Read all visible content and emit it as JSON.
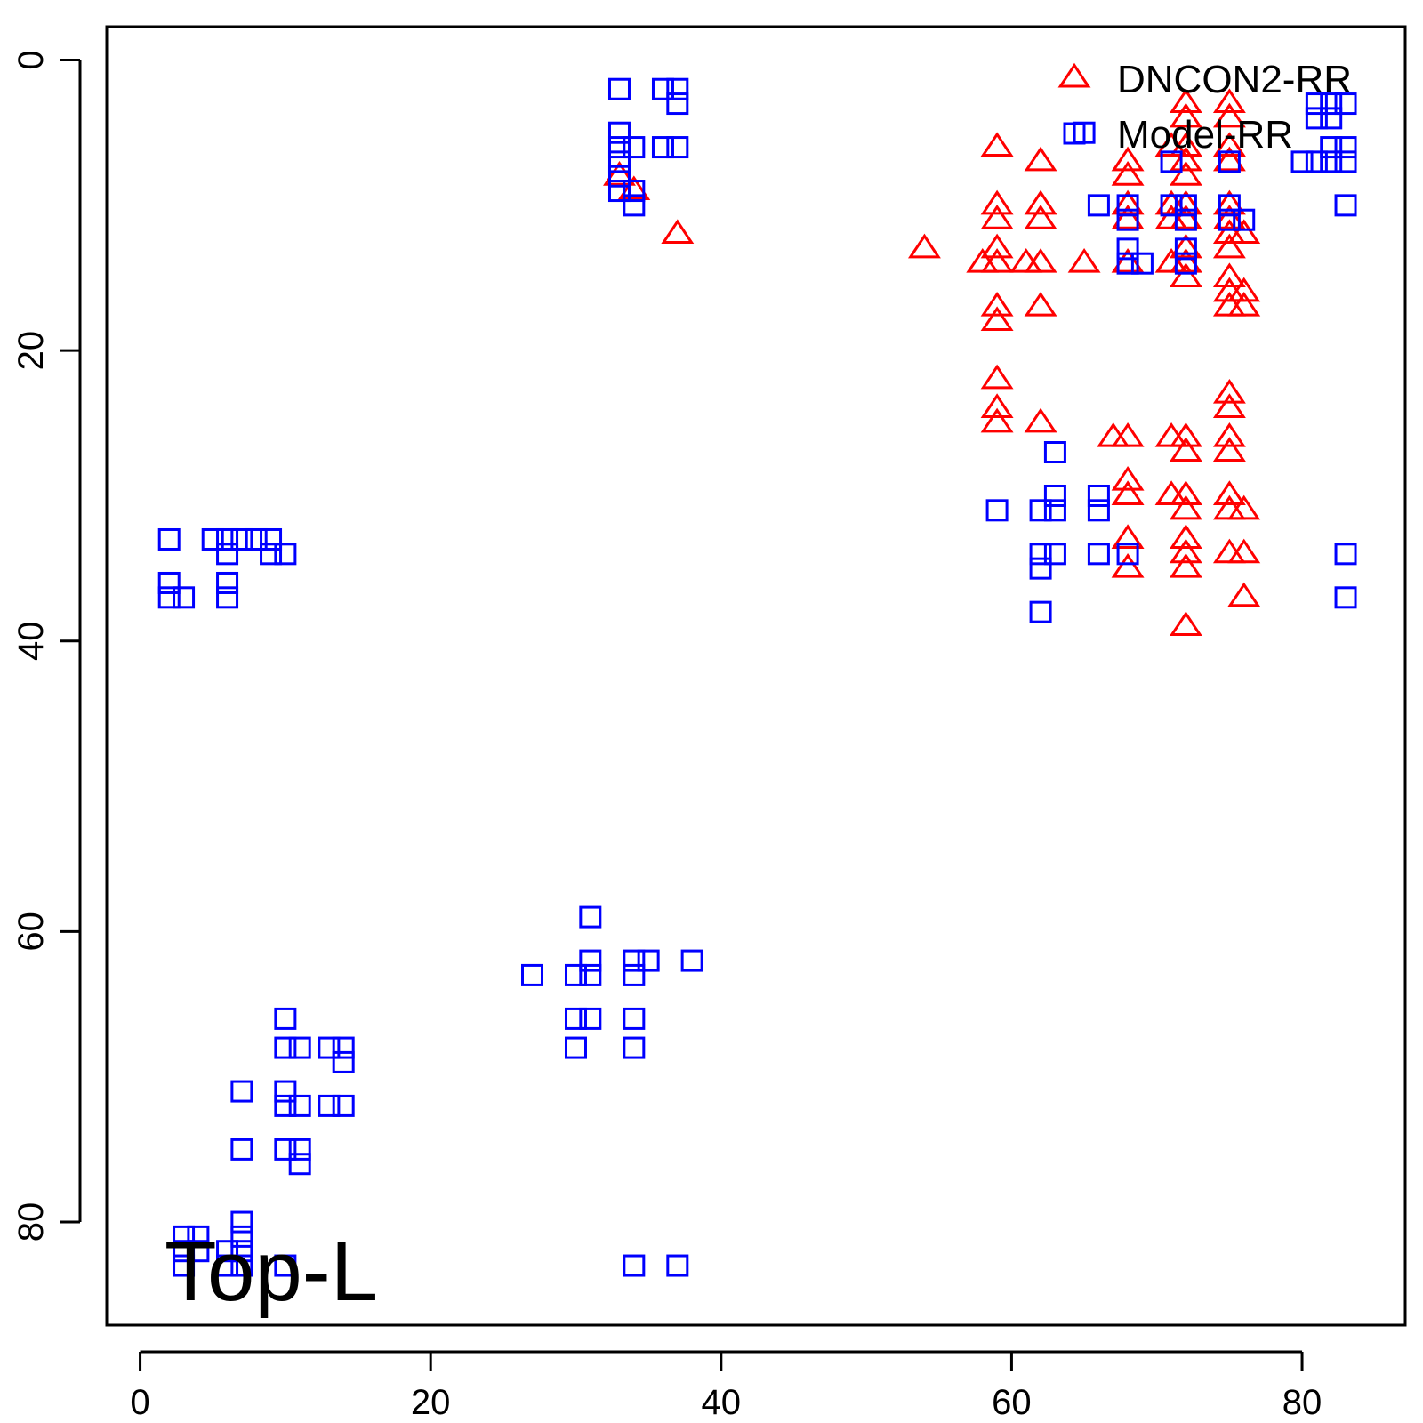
{
  "chart_data": {
    "type": "scatter",
    "title": "",
    "xlabel": "",
    "ylabel": "",
    "xlim": [
      -2.3,
      87.1
    ],
    "ylim": [
      -2.3,
      87.1
    ],
    "y_reversed": true,
    "x_ticks": [
      0,
      20,
      40,
      60,
      80
    ],
    "y_ticks": [
      0,
      20,
      40,
      60,
      80
    ],
    "grid": false,
    "legend": {
      "position": "top-right"
    },
    "annotation": "Top-L",
    "series": [
      {
        "name": "DNCON2-RR",
        "marker": "triangle",
        "color": "#ff0000",
        "points": [
          [
            33,
            8
          ],
          [
            34,
            9
          ],
          [
            37,
            12
          ],
          [
            54,
            13
          ],
          [
            59,
            6
          ],
          [
            59,
            10
          ],
          [
            59,
            11
          ],
          [
            59,
            13
          ],
          [
            59,
            14
          ],
          [
            59,
            17
          ],
          [
            59,
            18
          ],
          [
            59,
            22
          ],
          [
            59,
            24
          ],
          [
            59,
            25
          ],
          [
            58,
            14
          ],
          [
            61,
            14
          ],
          [
            62,
            7
          ],
          [
            62,
            10
          ],
          [
            62,
            11
          ],
          [
            62,
            14
          ],
          [
            62,
            17
          ],
          [
            62,
            25
          ],
          [
            65,
            14
          ],
          [
            67,
            26
          ],
          [
            68,
            7
          ],
          [
            68,
            8
          ],
          [
            68,
            10
          ],
          [
            68,
            11
          ],
          [
            68,
            14
          ],
          [
            68,
            26
          ],
          [
            68,
            29
          ],
          [
            68,
            30
          ],
          [
            68,
            33
          ],
          [
            68,
            35
          ],
          [
            71,
            6
          ],
          [
            71,
            10
          ],
          [
            71,
            11
          ],
          [
            71,
            14
          ],
          [
            71,
            26
          ],
          [
            71,
            30
          ],
          [
            72,
            3
          ],
          [
            72,
            4
          ],
          [
            72,
            6
          ],
          [
            72,
            7
          ],
          [
            72,
            8
          ],
          [
            72,
            10
          ],
          [
            72,
            11
          ],
          [
            72,
            13
          ],
          [
            72,
            14
          ],
          [
            72,
            15
          ],
          [
            72,
            26
          ],
          [
            72,
            27
          ],
          [
            72,
            30
          ],
          [
            72,
            31
          ],
          [
            72,
            33
          ],
          [
            72,
            34
          ],
          [
            72,
            35
          ],
          [
            72,
            39
          ],
          [
            75,
            3
          ],
          [
            75,
            4
          ],
          [
            75,
            6
          ],
          [
            75,
            7
          ],
          [
            75,
            10
          ],
          [
            75,
            11
          ],
          [
            75,
            12
          ],
          [
            75,
            13
          ],
          [
            75,
            15
          ],
          [
            75,
            16
          ],
          [
            75,
            17
          ],
          [
            75,
            23
          ],
          [
            75,
            24
          ],
          [
            75,
            26
          ],
          [
            75,
            27
          ],
          [
            75,
            30
          ],
          [
            75,
            31
          ],
          [
            75,
            34
          ],
          [
            76,
            12
          ],
          [
            76,
            16
          ],
          [
            76,
            17
          ],
          [
            76,
            31
          ],
          [
            76,
            34
          ],
          [
            76,
            37
          ]
        ]
      },
      {
        "name": "Model-RR",
        "marker": "square",
        "color": "#0000ff",
        "points": [
          [
            33,
            2
          ],
          [
            33,
            5
          ],
          [
            33,
            6
          ],
          [
            33,
            7
          ],
          [
            33,
            8
          ],
          [
            33,
            9
          ],
          [
            34,
            6
          ],
          [
            34,
            9
          ],
          [
            34,
            10
          ],
          [
            36,
            2
          ],
          [
            37,
            2
          ],
          [
            37,
            3
          ],
          [
            36,
            6
          ],
          [
            37,
            6
          ],
          [
            2,
            33
          ],
          [
            2,
            36
          ],
          [
            2,
            37
          ],
          [
            3,
            37
          ],
          [
            5,
            33
          ],
          [
            6,
            33
          ],
          [
            6,
            34
          ],
          [
            6,
            36
          ],
          [
            6,
            37
          ],
          [
            7,
            33
          ],
          [
            8,
            33
          ],
          [
            9,
            33
          ],
          [
            9,
            34
          ],
          [
            10,
            34
          ],
          [
            27,
            63
          ],
          [
            30,
            63
          ],
          [
            30,
            66
          ],
          [
            30,
            68
          ],
          [
            31,
            59
          ],
          [
            31,
            62
          ],
          [
            31,
            63
          ],
          [
            31,
            66
          ],
          [
            34,
            62
          ],
          [
            34,
            63
          ],
          [
            34,
            66
          ],
          [
            34,
            68
          ],
          [
            35,
            62
          ],
          [
            38,
            62
          ],
          [
            34,
            83
          ],
          [
            37,
            83
          ],
          [
            10,
            66
          ],
          [
            10,
            68
          ],
          [
            10,
            71
          ],
          [
            10,
            72
          ],
          [
            10,
            75
          ],
          [
            11,
            68
          ],
          [
            11,
            72
          ],
          [
            11,
            75
          ],
          [
            11,
            76
          ],
          [
            13,
            68
          ],
          [
            13,
            72
          ],
          [
            14,
            68
          ],
          [
            14,
            69
          ],
          [
            14,
            72
          ],
          [
            7,
            71
          ],
          [
            7,
            75
          ],
          [
            7,
            80
          ],
          [
            7,
            81
          ],
          [
            7,
            82
          ],
          [
            7,
            83
          ],
          [
            3,
            81
          ],
          [
            3,
            82
          ],
          [
            3,
            83
          ],
          [
            4,
            81
          ],
          [
            4,
            82
          ],
          [
            6,
            82
          ],
          [
            6,
            83
          ],
          [
            10,
            83
          ],
          [
            59,
            31
          ],
          [
            62,
            31
          ],
          [
            62,
            34
          ],
          [
            62,
            35
          ],
          [
            62,
            38
          ],
          [
            63,
            27
          ],
          [
            63,
            30
          ],
          [
            63,
            31
          ],
          [
            63,
            34
          ],
          [
            66,
            30
          ],
          [
            66,
            31
          ],
          [
            66,
            34
          ],
          [
            68,
            34
          ],
          [
            83,
            34
          ],
          [
            83,
            37
          ],
          [
            65,
            5
          ],
          [
            66,
            10
          ],
          [
            68,
            10
          ],
          [
            68,
            11
          ],
          [
            68,
            13
          ],
          [
            68,
            14
          ],
          [
            69,
            14
          ],
          [
            71,
            7
          ],
          [
            71,
            10
          ],
          [
            72,
            10
          ],
          [
            72,
            11
          ],
          [
            72,
            13
          ],
          [
            72,
            14
          ],
          [
            75,
            7
          ],
          [
            75,
            10
          ],
          [
            75,
            11
          ],
          [
            76,
            11
          ],
          [
            80,
            7
          ],
          [
            81,
            3
          ],
          [
            81,
            4
          ],
          [
            81,
            7
          ],
          [
            82,
            3
          ],
          [
            82,
            4
          ],
          [
            82,
            6
          ],
          [
            82,
            7
          ],
          [
            83,
            3
          ],
          [
            83,
            6
          ],
          [
            83,
            7
          ],
          [
            83,
            10
          ]
        ]
      }
    ]
  }
}
